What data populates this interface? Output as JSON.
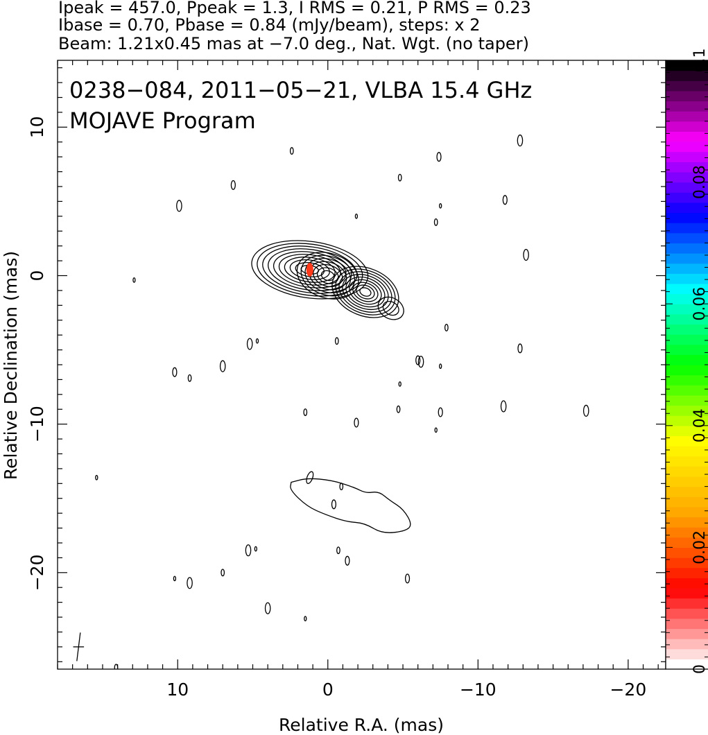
{
  "header": {
    "line1": "Ipeak = 457.0, Ppeak = 1.3, I RMS = 0.21, P RMS = 0.23",
    "line2": "Ibase = 0.70, Pbase = 0.84 (mJy/beam), steps: x 2",
    "line3": "Beam: 1.21x0.45 mas at −7.0 deg., Nat. Wgt. (no taper)"
  },
  "chart_data": {
    "type": "contour",
    "title": "0238−084, 2011−05−21, VLBA 15.4 GHz",
    "subtitle": "MOJAVE Program",
    "xlabel": "Relative R.A. (mas)",
    "ylabel": "Relative Declination (mas)",
    "xlim": [
      18,
      -22.5
    ],
    "ylim": [
      -26.5,
      14.5
    ],
    "x_ticks": [
      10,
      0,
      -10,
      -20
    ],
    "x_tick_labels": [
      "10",
      "0",
      "−10",
      "−20"
    ],
    "y_ticks": [
      10,
      0,
      -10,
      -20
    ],
    "y_tick_labels": [
      "10",
      "0",
      "−10",
      "−20"
    ],
    "colorbar": {
      "range": [
        0,
        0.1
      ],
      "ticks": [
        0,
        0.02,
        0.04,
        0.06,
        0.08,
        0.1
      ],
      "tick_labels": [
        "0",
        "0.02",
        "0.04",
        "0.06",
        "0.08",
        "0.1"
      ],
      "colors": [
        "#ffffff",
        "#ff0000",
        "#ffa500",
        "#ffff00",
        "#00ff00",
        "#00ffff",
        "#0000ff",
        "#ff00ff",
        "#000000"
      ]
    },
    "contour_levels_mJy": [
      0.7,
      1.4,
      2.8,
      5.6,
      11.2,
      22.4,
      44.8,
      89.6,
      179.2,
      358.4
    ],
    "components": [
      {
        "x": 1.2,
        "y": 0.4,
        "rx": 3.9,
        "ry": 1.9,
        "angle": 8,
        "levels": 10
      },
      {
        "x": 0.0,
        "y": 0.0,
        "rx": 2.1,
        "ry": 1.5,
        "angle": 18,
        "levels": 7
      },
      {
        "x": -2.5,
        "y": -1.1,
        "rx": 2.3,
        "ry": 1.6,
        "angle": 22,
        "levels": 9
      },
      {
        "x": -4.2,
        "y": -2.2,
        "rx": 0.9,
        "ry": 0.7,
        "angle": 30,
        "levels": 2
      }
    ],
    "polarization_core": {
      "x": 1.2,
      "y": 0.4,
      "color": "#ff3a1a"
    },
    "beam": {
      "x": 16.6,
      "y": -25.0,
      "major": 1.21,
      "minor": 0.45,
      "pa": -7.0
    },
    "noise_contours": [
      [
        6.5,
        10.4
      ],
      [
        2.4,
        8.4
      ],
      [
        6.3,
        6.1
      ],
      [
        9.9,
        4.7
      ],
      [
        -1.9,
        4.0
      ],
      [
        -4.8,
        6.6
      ],
      [
        -7.4,
        8.0
      ],
      [
        -12.8,
        9.1
      ],
      [
        -7.5,
        4.7
      ],
      [
        -7.2,
        3.6
      ],
      [
        -11.8,
        5.1
      ],
      [
        -13.2,
        1.4
      ],
      [
        12.9,
        -0.3
      ],
      [
        -7.9,
        -3.5
      ],
      [
        -12.8,
        -4.9
      ],
      [
        5.2,
        -4.6
      ],
      [
        4.7,
        -4.4
      ],
      [
        -0.6,
        -4.4
      ],
      [
        -6.0,
        -5.7
      ],
      [
        -6.2,
        -5.8
      ],
      [
        -7.5,
        -6.1
      ],
      [
        9.2,
        -6.9
      ],
      [
        10.2,
        -6.5
      ],
      [
        7.0,
        -6.1
      ],
      [
        -4.8,
        -7.3
      ],
      [
        -4.7,
        -9.0
      ],
      [
        -7.5,
        -9.2
      ],
      [
        -11.7,
        -8.8
      ],
      [
        -7.2,
        -10.4
      ],
      [
        1.5,
        -9.2
      ],
      [
        -1.9,
        -9.9
      ],
      [
        -17.2,
        -9.1
      ],
      [
        15.4,
        -13.6
      ],
      [
        -0.9,
        -14.2
      ],
      [
        -0.4,
        -15.4
      ],
      [
        5.3,
        -18.5
      ],
      [
        4.8,
        -18.4
      ],
      [
        -0.7,
        -18.5
      ],
      [
        -1.3,
        -19.2
      ],
      [
        9.2,
        -20.7
      ],
      [
        10.2,
        -20.4
      ],
      [
        7.0,
        -20.0
      ],
      [
        -5.3,
        -20.4
      ],
      [
        4.0,
        -22.4
      ],
      [
        1.5,
        -23.1
      ],
      [
        14.1,
        -26.4
      ]
    ],
    "extended_blob": {
      "x": -0.7,
      "y": -14.8,
      "levels": 1
    }
  }
}
